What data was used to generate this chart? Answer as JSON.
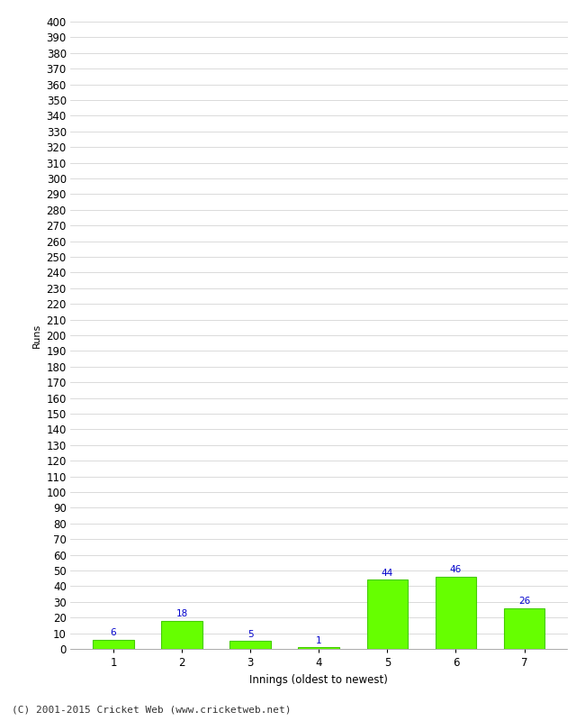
{
  "categories": [
    1,
    2,
    3,
    4,
    5,
    6,
    7
  ],
  "values": [
    6,
    18,
    5,
    1,
    44,
    46,
    26
  ],
  "bar_color": "#66ff00",
  "bar_edge_color": "#44cc00",
  "label_color": "#0000cc",
  "xlabel": "Innings (oldest to newest)",
  "ylabel": "Runs",
  "ylim": [
    0,
    400
  ],
  "ytick_step": 10,
  "background_color": "#ffffff",
  "grid_color": "#cccccc",
  "footer_text": "(C) 2001-2015 Cricket Web (www.cricketweb.net)",
  "label_fontsize": 7.5,
  "axis_fontsize": 8.5,
  "footer_fontsize": 8,
  "ylabel_fontsize": 8
}
